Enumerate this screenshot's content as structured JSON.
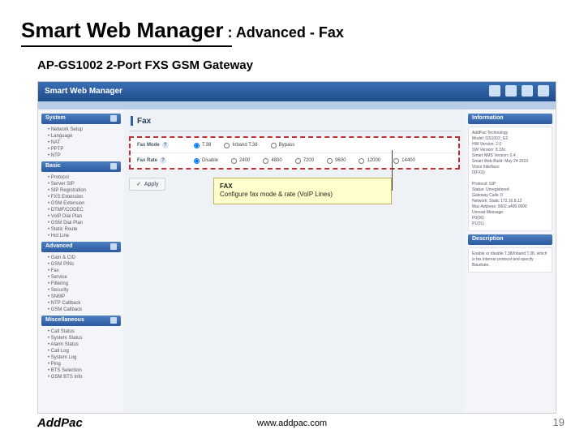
{
  "slide": {
    "title_main": "Smart Web Manager",
    "title_sep": " : ",
    "title_sub": "Advanced - Fax",
    "subtitle": "AP-GS1002 2-Port FXS GSM Gateway"
  },
  "swm": {
    "header": "Smart Web Manager"
  },
  "nav": {
    "sections": [
      {
        "label": "System",
        "items": [
          "Network Setup",
          "Language",
          "NAT",
          "PPTP",
          "NTP"
        ]
      },
      {
        "label": "Basic",
        "items": [
          "Protocol",
          "Server SIP",
          "SIP Registration",
          "FXS Extension",
          "GSM Extension",
          "DTMF/CODEC",
          "VoIP Dial Plan",
          "GSM Dial Plan",
          "Static Route",
          "Hot Line"
        ]
      },
      {
        "label": "Advanced",
        "items": [
          "Gain & CID",
          "GSM PINs",
          "Fax",
          "Service",
          "Filtering",
          "Security",
          "SNMP",
          "NTP Callback",
          "GSM Callback"
        ]
      },
      {
        "label": "Miscellaneous",
        "items": [
          "Call Status",
          "System Status",
          "Alarm Status",
          "Call Log",
          "System Log",
          "Ping",
          "BTS Selection",
          "GSM BTS Info"
        ]
      }
    ]
  },
  "main": {
    "title": "Fax",
    "row1_label": "Fax Mode",
    "row1_opts": [
      "T.38",
      "Inband T.38",
      "Bypass"
    ],
    "row1_sel": 0,
    "row2_label": "Fax Rate",
    "row2_opts": [
      "Disable",
      "2400",
      "4800",
      "7200",
      "9600",
      "12000",
      "14400"
    ],
    "row2_sel": 0,
    "apply": "Apply"
  },
  "annot": {
    "line1": "FAX",
    "line2": "Configure fax mode & rate (VoIP Lines)"
  },
  "info": {
    "h1": "Information",
    "body1": "AddPac Technology\nModel: GS1002_G2\nHW Version: 2.0\nSW Version: 8.33c\nSmart NMS Version: 0.4\nSmart Web Build: May 24 2010\nVoice Interface:\n  0(FXS)\n\nProtocol: SIP\nStatus: Unregistered\nGateway Calls: 0\nNetwork: Static 172.16.8.12\nMac Address: 0002.a400.0000\nUnread Message:\n  P0(00)\n  P1(01)",
    "h2": "Description",
    "body2": "Enable or disable T.38/Inband T.38, which is fax internet protocol and specify Baudrate."
  },
  "footer": {
    "logo": "AddPac",
    "url": "www.addpac.com",
    "page": "19"
  }
}
